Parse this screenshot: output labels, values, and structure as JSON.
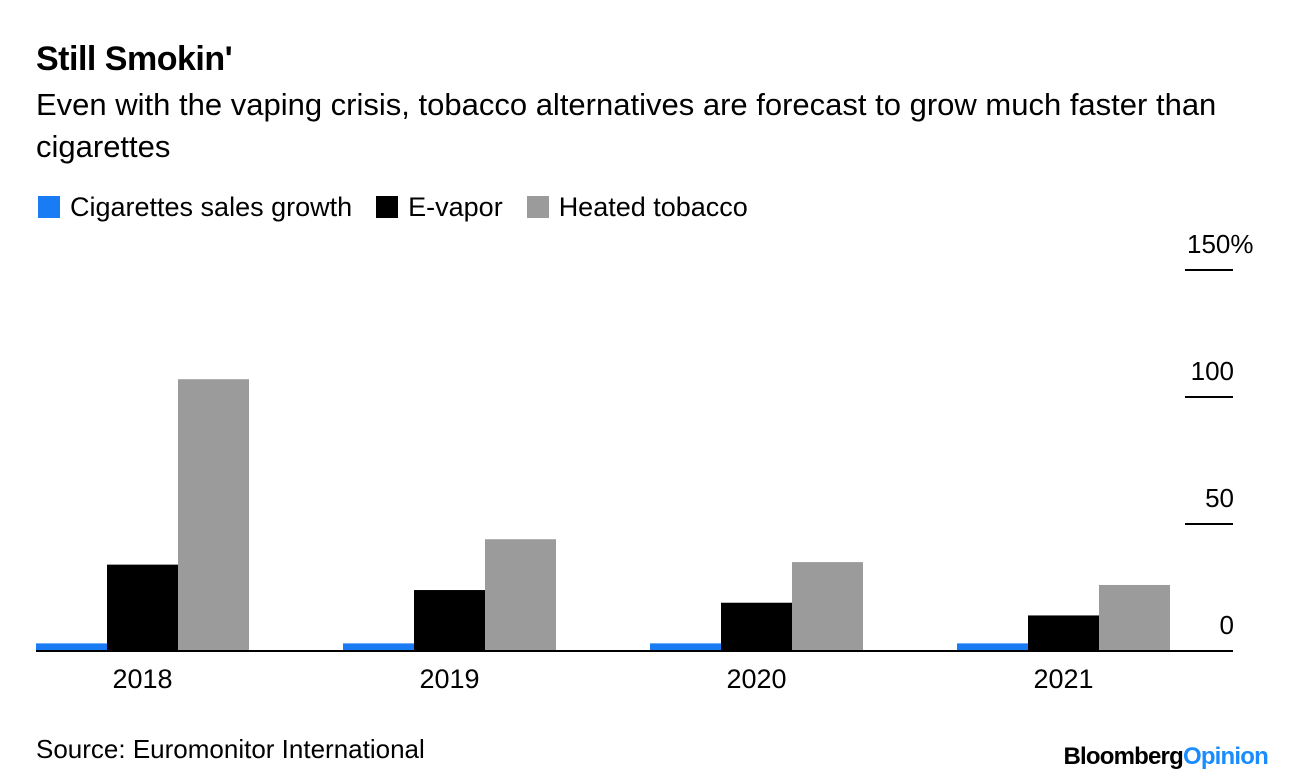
{
  "title": "Still Smokin'",
  "subtitle": "Even with the vaping crisis, tobacco alternatives are forecast to grow much faster than cigarettes",
  "source": "Source: Euromonitor International",
  "brand": {
    "main": "Bloomberg",
    "accent": "Opinion"
  },
  "colors": {
    "cigarettes": "#1a7cf5",
    "evapor": "#000000",
    "heated": "#9b9b9b",
    "axis": "#000000",
    "brand_accent": "#1a8cff"
  },
  "chart_data": {
    "type": "bar",
    "categories": [
      "2018",
      "2019",
      "2020",
      "2021"
    ],
    "series": [
      {
        "name": "Cigarettes sales growth",
        "values": [
          3,
          3,
          3,
          3
        ]
      },
      {
        "name": "E-vapor",
        "values": [
          34,
          24,
          19,
          14
        ]
      },
      {
        "name": "Heated tobacco",
        "values": [
          107,
          44,
          35,
          26
        ]
      }
    ],
    "ylim": [
      0,
      150
    ],
    "yticks": [
      0,
      50,
      100,
      150
    ],
    "ytick_labels": [
      "0",
      "50",
      "100",
      "150%"
    ],
    "axis_position": "right",
    "grid": false,
    "legend": "top-left"
  }
}
